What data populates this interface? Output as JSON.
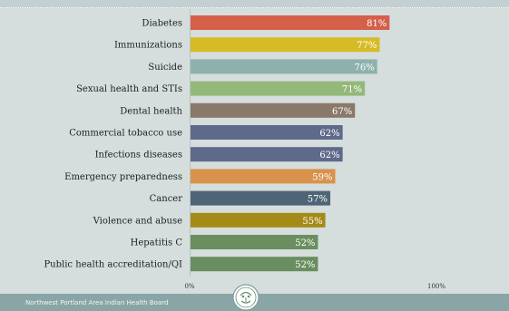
{
  "chart_data": {
    "type": "bar",
    "orientation": "horizontal",
    "categories": [
      "Diabetes",
      "Immunizations",
      "Suicide",
      "Sexual health and STIs",
      "Dental health",
      "Commercial tobacco use",
      "Infections diseases",
      "Emergency preparedness",
      "Cancer",
      "Violence and abuse",
      "Hepatitis C",
      "Public health accreditation/QI"
    ],
    "values": [
      81,
      77,
      76,
      71,
      67,
      62,
      62,
      59,
      57,
      55,
      52,
      52
    ],
    "value_labels": [
      "81%",
      "77%",
      "76%",
      "71%",
      "67%",
      "62%",
      "62%",
      "59%",
      "57%",
      "55%",
      "52%",
      "52%"
    ],
    "colors": [
      "#d4604a",
      "#d6bb25",
      "#8eb1ad",
      "#94b87a",
      "#8a7869",
      "#5e6a8a",
      "#5e6a8a",
      "#d8924c",
      "#506478",
      "#a48b18",
      "#6a8e5f",
      "#6a8e5f"
    ],
    "xlim": [
      0,
      100
    ],
    "x_tick_labels": [
      "0%",
      "100%"
    ],
    "grid": false
  },
  "footer": {
    "organization": "Northwest Portland Area Indian Health Board"
  },
  "icons": {
    "logo": "npaihb-logo-icon"
  }
}
